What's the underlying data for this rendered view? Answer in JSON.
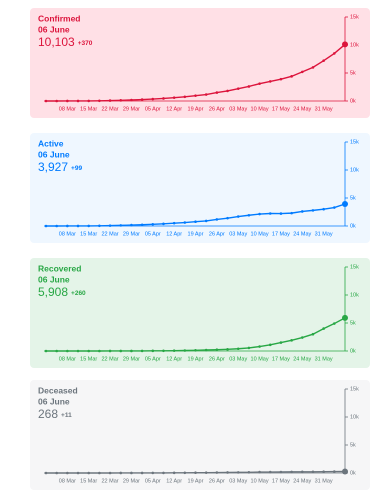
{
  "chart_data": [
    {
      "type": "line",
      "title": "Confirmed",
      "date": "06 June",
      "headline": "10,103",
      "delta": "+370",
      "color": "#dc143c",
      "background": "#ffe0e6",
      "categories": [
        null,
        null,
        "08 Mar",
        null,
        "15 Mar",
        null,
        "22 Mar",
        null,
        "29 Mar",
        null,
        "05 Apr",
        null,
        "12 Apr",
        null,
        "19 Apr",
        null,
        "26 Apr",
        null,
        "03 May",
        null,
        "10 May",
        null,
        "17 May",
        null,
        "24 May",
        null,
        "31 May",
        null,
        null
      ],
      "values": [
        0,
        0,
        3,
        10,
        20,
        40,
        70,
        120,
        180,
        250,
        350,
        450,
        600,
        750,
        950,
        1150,
        1500,
        1800,
        2200,
        2600,
        3100,
        3500,
        3900,
        4400,
        5200,
        6000,
        7200,
        8500,
        10103
      ],
      "ylim": [
        0,
        15000
      ],
      "yticks": [
        {
          "value": 0,
          "label": "0k"
        },
        {
          "value": 5000,
          "label": "5k"
        },
        {
          "value": 10000,
          "label": "10k"
        },
        {
          "value": 15000,
          "label": "15k"
        }
      ]
    },
    {
      "type": "line",
      "title": "Active",
      "date": "06 June",
      "headline": "3,927",
      "delta": "+99",
      "color": "#007bff",
      "background": "#eff7ff",
      "categories": [
        null,
        null,
        "08 Mar",
        null,
        "15 Mar",
        null,
        "22 Mar",
        null,
        "29 Mar",
        null,
        "05 Apr",
        null,
        "12 Apr",
        null,
        "19 Apr",
        null,
        "26 Apr",
        null,
        "03 May",
        null,
        "10 May",
        null,
        "17 May",
        null,
        "24 May",
        null,
        "31 May",
        null,
        null
      ],
      "values": [
        0,
        0,
        3,
        10,
        19,
        37,
        65,
        110,
        165,
        225,
        310,
        390,
        510,
        620,
        770,
        910,
        1180,
        1400,
        1690,
        1920,
        2140,
        2230,
        2220,
        2300,
        2600,
        2790,
        3000,
        3300,
        3927
      ],
      "ylim": [
        0,
        15000
      ],
      "yticks": [
        {
          "value": 0,
          "label": "0k"
        },
        {
          "value": 5000,
          "label": "5k"
        },
        {
          "value": 10000,
          "label": "10k"
        },
        {
          "value": 15000,
          "label": "15k"
        }
      ]
    },
    {
      "type": "line",
      "title": "Recovered",
      "date": "06 June",
      "headline": "5,908",
      "delta": "+260",
      "color": "#28a745",
      "background": "#e4f4e8",
      "categories": [
        null,
        null,
        "08 Mar",
        null,
        "15 Mar",
        null,
        "22 Mar",
        null,
        "29 Mar",
        null,
        "05 Apr",
        null,
        "12 Apr",
        null,
        "19 Apr",
        null,
        "26 Apr",
        null,
        "03 May",
        null,
        "10 May",
        null,
        "17 May",
        null,
        "24 May",
        null,
        "31 May",
        null,
        null
      ],
      "values": [
        0,
        0,
        0,
        0,
        1,
        2,
        3,
        5,
        10,
        15,
        25,
        40,
        60,
        90,
        130,
        180,
        240,
        300,
        400,
        550,
        800,
        1100,
        1500,
        1900,
        2400,
        3000,
        4000,
        4900,
        5908
      ],
      "ylim": [
        0,
        15000
      ],
      "yticks": [
        {
          "value": 0,
          "label": "0k"
        },
        {
          "value": 5000,
          "label": "5k"
        },
        {
          "value": 10000,
          "label": "10k"
        },
        {
          "value": 15000,
          "label": "15k"
        }
      ]
    },
    {
      "type": "line",
      "title": "Deceased",
      "date": "06 June",
      "headline": "268",
      "delta": "+11",
      "color": "#6c757d",
      "background": "#f6f6f7",
      "categories": [
        null,
        null,
        "08 Mar",
        null,
        "15 Mar",
        null,
        "22 Mar",
        null,
        "29 Mar",
        null,
        "05 Apr",
        null,
        "12 Apr",
        null,
        "19 Apr",
        null,
        "26 Apr",
        null,
        "03 May",
        null,
        "10 May",
        null,
        "17 May",
        null,
        "24 May",
        null,
        "31 May",
        null,
        null
      ],
      "values": [
        0,
        0,
        0,
        0,
        0,
        1,
        2,
        5,
        5,
        10,
        15,
        20,
        30,
        40,
        50,
        60,
        80,
        100,
        110,
        130,
        160,
        170,
        180,
        200,
        210,
        220,
        230,
        250,
        268
      ],
      "ylim": [
        0,
        15000
      ],
      "yticks": [
        {
          "value": 0,
          "label": "0k"
        },
        {
          "value": 5000,
          "label": "5k"
        },
        {
          "value": 10000,
          "label": "10k"
        },
        {
          "value": 15000,
          "label": "15k"
        }
      ]
    }
  ]
}
